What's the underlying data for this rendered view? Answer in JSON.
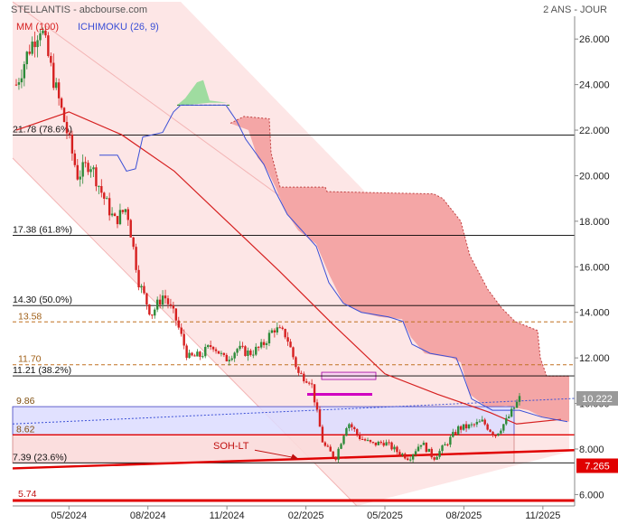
{
  "header": {
    "title": "STELLANTIS - abcbourse.com",
    "period": "2 ANS - JOUR",
    "legend_ma": "MM (100)",
    "legend_ichimoku": "ICHIMOKU (26, 9)"
  },
  "colors": {
    "candle_up": "#2e8b3a",
    "candle_down": "#d62020",
    "ma_line": "#d62020",
    "tenkan_line": "#3a4fd6",
    "cloud_bear": "#f4a6a6",
    "cloud_bull": "#9fdca0",
    "channel_fill": "#fde6e6",
    "support_line": "#e00000",
    "box_fill": "#dcdcff",
    "accent_magenta": "#d000c0"
  },
  "chart_data": {
    "type": "candlestick",
    "y_axis": {
      "min": 5.5,
      "max": 27,
      "ticks": [
        "6.000",
        "8.000",
        "10.000",
        "12.000",
        "14.000",
        "16.000",
        "18.000",
        "20.000",
        "22.000",
        "24.000",
        "26.000"
      ]
    },
    "x_axis": {
      "ticks": [
        "05/2024",
        "08/2024",
        "11/2024",
        "02/2025",
        "05/2025",
        "08/2025",
        "11/2025"
      ]
    },
    "last_price": {
      "label": "10.222",
      "value": 10.222
    },
    "support_price": {
      "label": "7.265",
      "value": 7.265
    },
    "fib_levels": [
      {
        "label": "21.78  (78.6%)",
        "value": 21.78
      },
      {
        "label": "17.38  (61.8%)",
        "value": 17.38
      },
      {
        "label": "14.30  (50.0%)",
        "value": 14.3
      },
      {
        "label": "11.21  (38.2%)",
        "value": 11.21
      },
      {
        "label": "7.39  (23.6%)",
        "value": 7.39
      }
    ],
    "dashed_levels": [
      {
        "label": "13.58",
        "value": 13.58
      },
      {
        "label": "11.70",
        "value": 11.7
      }
    ],
    "zone_levels": [
      {
        "label": "9.86",
        "value": 9.86
      },
      {
        "label": "8.62",
        "value": 8.62
      }
    ],
    "bottom_level": {
      "label": "5.74",
      "value": 5.74
    },
    "annotation": {
      "label": "SOH-LT"
    },
    "price_path": [
      {
        "d": "2024-03",
        "v": 24.0
      },
      {
        "d": "2024-03",
        "v": 25.5
      },
      {
        "d": "2024-04",
        "v": 26.6
      },
      {
        "d": "2024-04",
        "v": 24.3
      },
      {
        "d": "2024-05",
        "v": 22.2
      },
      {
        "d": "2024-05",
        "v": 20.0
      },
      {
        "d": "2024-06",
        "v": 20.6
      },
      {
        "d": "2024-06",
        "v": 19.2
      },
      {
        "d": "2024-07",
        "v": 18.0
      },
      {
        "d": "2024-07",
        "v": 18.6
      },
      {
        "d": "2024-08",
        "v": 15.3
      },
      {
        "d": "2024-08",
        "v": 13.9
      },
      {
        "d": "2024-09",
        "v": 14.8
      },
      {
        "d": "2024-09",
        "v": 13.7
      },
      {
        "d": "2024-10",
        "v": 12.0
      },
      {
        "d": "2024-10",
        "v": 12.1
      },
      {
        "d": "2024-11",
        "v": 12.6
      },
      {
        "d": "2024-11",
        "v": 11.9
      },
      {
        "d": "2024-12",
        "v": 12.4
      },
      {
        "d": "2024-12",
        "v": 12.2
      },
      {
        "d": "2025-01",
        "v": 12.5
      },
      {
        "d": "2025-02",
        "v": 13.3
      },
      {
        "d": "2025-02",
        "v": 13.0
      },
      {
        "d": "2025-03",
        "v": 11.3
      },
      {
        "d": "2025-03",
        "v": 11.0
      },
      {
        "d": "2025-04",
        "v": 8.2
      },
      {
        "d": "2025-04",
        "v": 7.6
      },
      {
        "d": "2025-05",
        "v": 9.2
      },
      {
        "d": "2025-05",
        "v": 8.5
      },
      {
        "d": "2025-06",
        "v": 8.2
      },
      {
        "d": "2025-06",
        "v": 8.3
      },
      {
        "d": "2025-07",
        "v": 7.9
      },
      {
        "d": "2025-07",
        "v": 7.6
      },
      {
        "d": "2025-08",
        "v": 8.3
      },
      {
        "d": "2025-08",
        "v": 7.6
      },
      {
        "d": "2025-09",
        "v": 8.2
      },
      {
        "d": "2025-09",
        "v": 8.9
      },
      {
        "d": "2025-10",
        "v": 9.0
      },
      {
        "d": "2025-10",
        "v": 9.2
      },
      {
        "d": "2025-11",
        "v": 8.6
      },
      {
        "d": "2025-11",
        "v": 9.3
      },
      {
        "d": "2025-11",
        "v": 10.22
      }
    ],
    "moving_average": [
      {
        "d": "2024-03",
        "v": 22.0
      },
      {
        "d": "2024-05",
        "v": 22.8
      },
      {
        "d": "2024-07",
        "v": 21.8
      },
      {
        "d": "2024-09",
        "v": 20.2
      },
      {
        "d": "2024-11",
        "v": 18.0
      },
      {
        "d": "2025-01",
        "v": 15.8
      },
      {
        "d": "2025-03",
        "v": 13.5
      },
      {
        "d": "2025-05",
        "v": 11.3
      },
      {
        "d": "2025-07",
        "v": 10.4
      },
      {
        "d": "2025-09",
        "v": 9.6
      },
      {
        "d": "2025-10",
        "v": 9.1
      },
      {
        "d": "2025-11",
        "v": 9.3
      }
    ]
  }
}
